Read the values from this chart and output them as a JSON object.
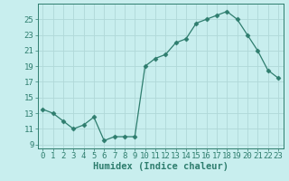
{
  "x": [
    0,
    1,
    2,
    3,
    4,
    5,
    6,
    7,
    8,
    9,
    10,
    11,
    12,
    13,
    14,
    15,
    16,
    17,
    18,
    19,
    20,
    21,
    22,
    23
  ],
  "y": [
    13.5,
    13.0,
    12.0,
    11.0,
    11.5,
    12.5,
    9.5,
    10.0,
    10.0,
    10.0,
    19.0,
    20.0,
    20.5,
    22.0,
    22.5,
    24.5,
    25.0,
    25.5,
    26.0,
    25.0,
    23.0,
    21.0,
    18.5,
    17.5
  ],
  "line_color": "#2e7d6e",
  "marker": "D",
  "marker_size": 2.5,
  "bg_color": "#c8eeee",
  "grid_color": "#b0d8d8",
  "xlabel": "Humidex (Indice chaleur)",
  "xlim": [
    -0.5,
    23.5
  ],
  "ylim": [
    8.5,
    27.0
  ],
  "yticks": [
    9,
    11,
    13,
    15,
    17,
    19,
    21,
    23,
    25
  ],
  "xticks": [
    0,
    1,
    2,
    3,
    4,
    5,
    6,
    7,
    8,
    9,
    10,
    11,
    12,
    13,
    14,
    15,
    16,
    17,
    18,
    19,
    20,
    21,
    22,
    23
  ],
  "label_fontsize": 7.5,
  "tick_fontsize": 6.5
}
